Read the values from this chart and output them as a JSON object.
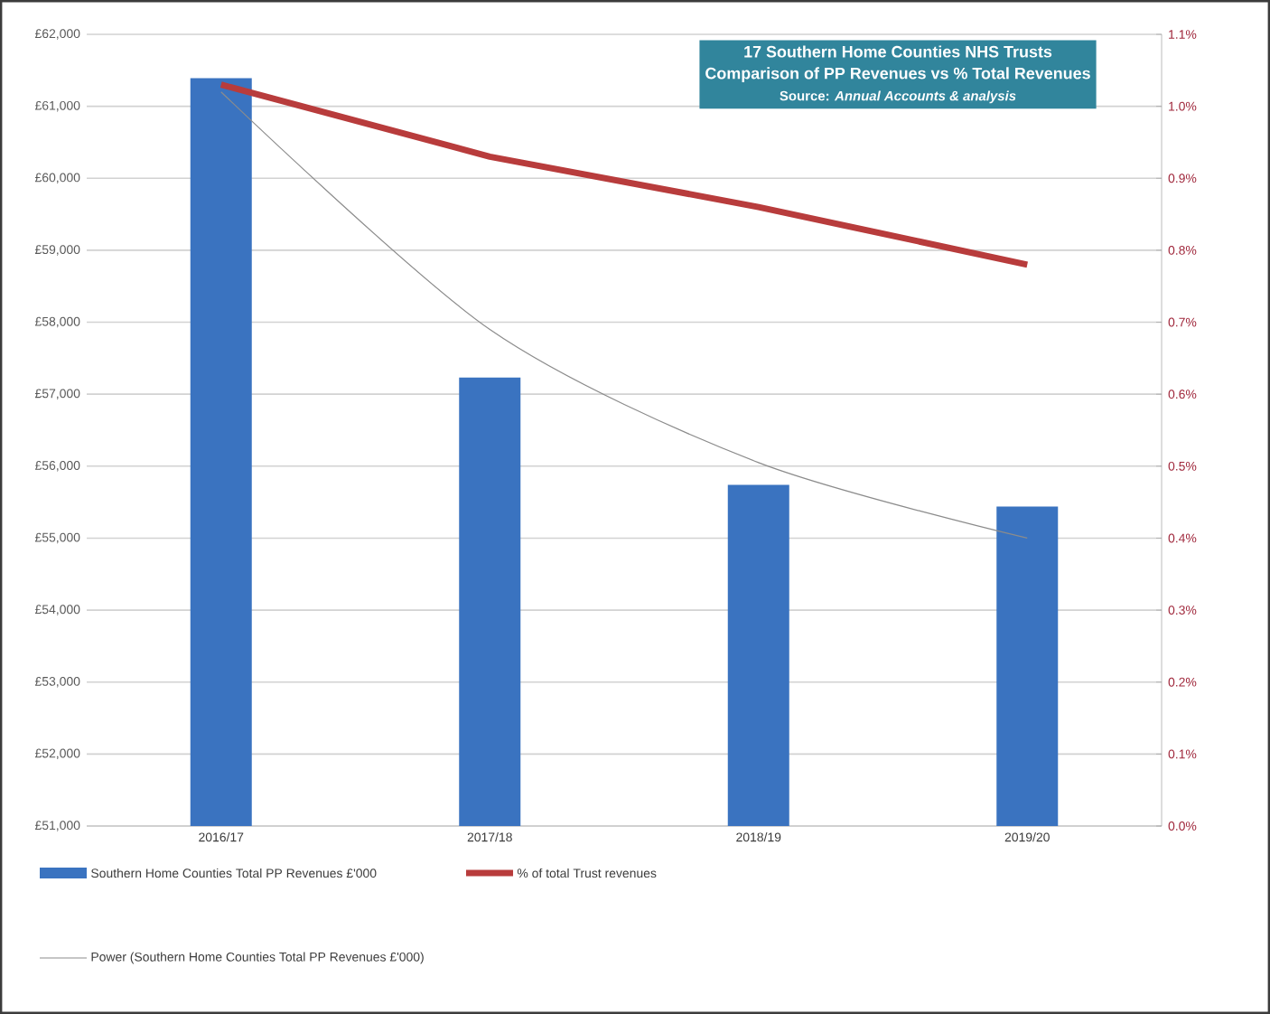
{
  "chart_data": {
    "type": "bar",
    "title": "17 Southern Home Counties NHS Trusts",
    "subtitle": "Comparison of PP Revenues vs % Total Revenues",
    "annotations": [
      "Source: *Annual Accounts & analysis*"
    ],
    "categories": [
      "2016/17",
      "2017/18",
      "2018/19",
      "2019/20"
    ],
    "series": [
      {
        "name": "Southern Home Counties Total PP Revenues £'000",
        "color": "#3a73c0",
        "values": [
          61390,
          57230,
          55740,
          55440
        ]
      },
      {
        "type": "line",
        "name": "% of total Trust revenues",
        "color": "#b83c3c",
        "axis": "y2",
        "values": [
          1.03,
          0.93,
          0.86,
          0.78
        ]
      },
      {
        "type": "line",
        "name": "Power (Southern Home Counties Total PP Revenues £'000)",
        "color": "#8c8c8c",
        "values": [
          61200,
          57900,
          56050,
          55000
        ]
      }
    ],
    "ylim": [
      51000,
      62000
    ],
    "yticks": [
      {
        "value": 51000,
        "label": "£51,000"
      },
      {
        "value": 52000,
        "label": "£52,000"
      },
      {
        "value": 53000,
        "label": "£53,000"
      },
      {
        "value": 54000,
        "label": "£54,000"
      },
      {
        "value": 55000,
        "label": "£55,000"
      },
      {
        "value": 56000,
        "label": "£56,000"
      },
      {
        "value": 57000,
        "label": "£57,000"
      },
      {
        "value": 58000,
        "label": "£58,000"
      },
      {
        "value": 59000,
        "label": "£59,000"
      },
      {
        "value": 60000,
        "label": "£60,000"
      },
      {
        "value": 61000,
        "label": "£61,000"
      },
      {
        "value": 62000,
        "label": "£62,000"
      }
    ],
    "y2lim": [
      0,
      1.1
    ],
    "y2ticks": [
      {
        "value": 0,
        "label": "0.0%"
      },
      {
        "value": 0.1,
        "label": "0.1%"
      },
      {
        "value": 0.2,
        "label": "0.2%"
      },
      {
        "value": 0.3,
        "label": "0.3%"
      },
      {
        "value": 0.4,
        "label": "0.4%"
      },
      {
        "value": 0.5,
        "label": "0.5%"
      },
      {
        "value": 0.6,
        "label": "0.6%"
      },
      {
        "value": 0.7,
        "label": "0.7%"
      },
      {
        "value": 0.8,
        "label": "0.8%"
      },
      {
        "value": 0.9,
        "label": "0.9%"
      },
      {
        "value": 1.0,
        "label": "1.0%"
      },
      {
        "value": 1.1,
        "label": "1.1%"
      }
    ],
    "grid": "y",
    "legend": "bottom"
  }
}
